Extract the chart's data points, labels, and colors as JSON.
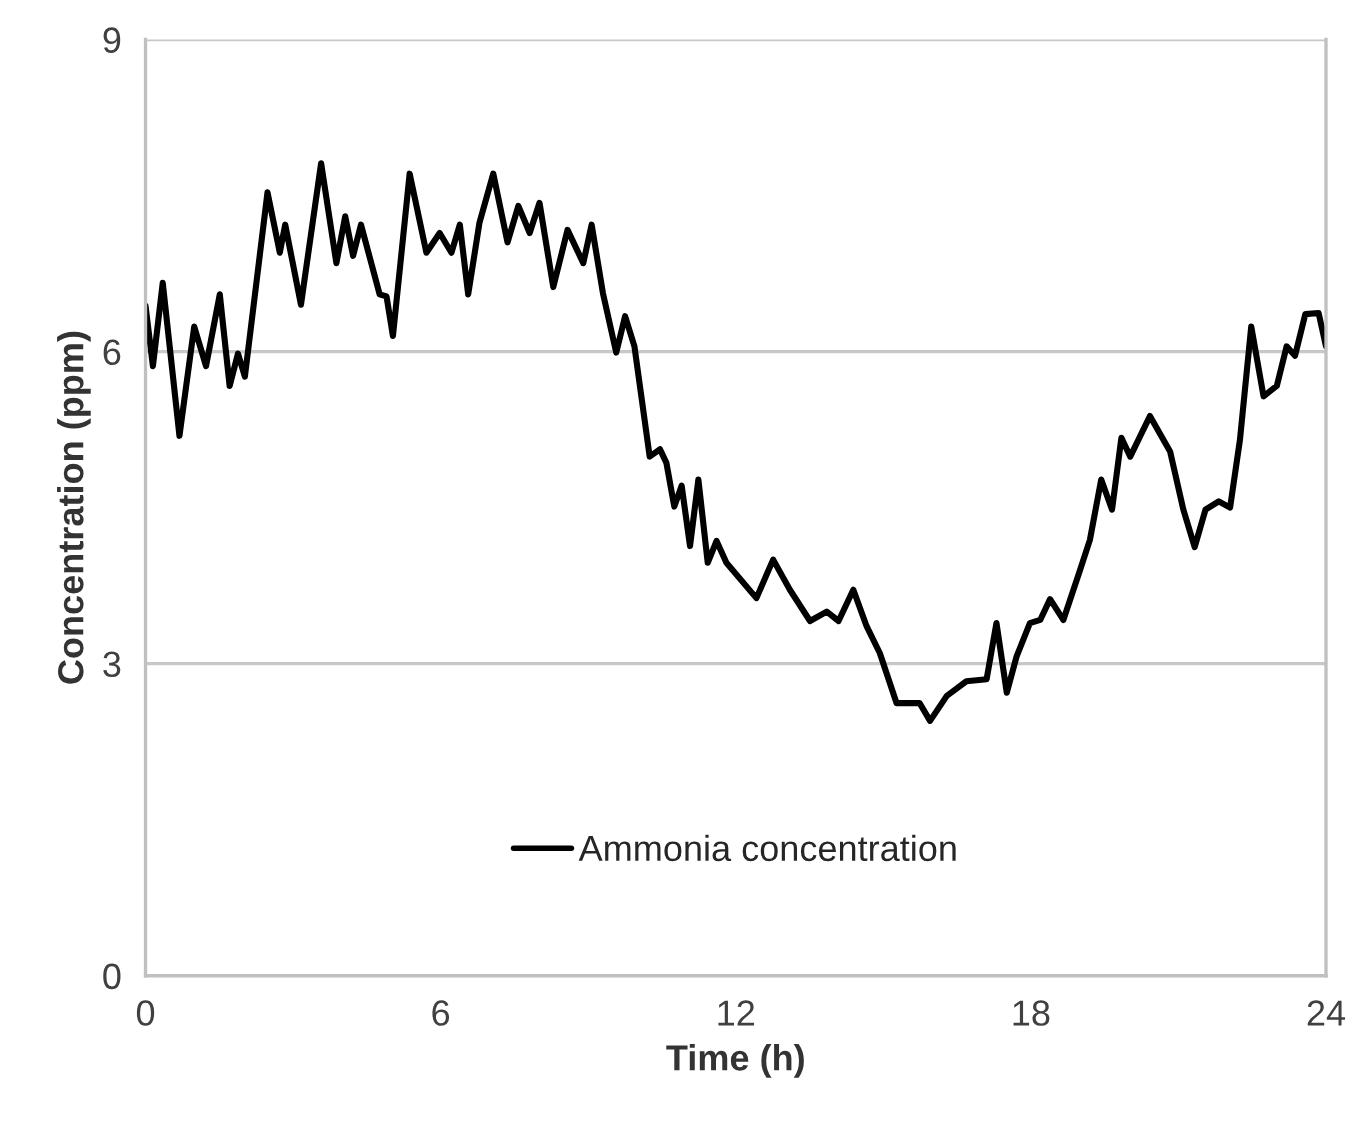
{
  "chart_data": {
    "type": "line",
    "xlabel": "Time (h)",
    "ylabel": "Concentration (ppm)",
    "xlim": [
      0,
      24
    ],
    "xticks": [
      0,
      6,
      12,
      18,
      24
    ],
    "ylim": [
      0,
      9
    ],
    "yticks": [
      0,
      3,
      6,
      9
    ],
    "grid": "y",
    "legend": "bottom",
    "marker": "none",
    "line_style": "solid",
    "series": [
      {
        "name": "Ammonia concentration",
        "color": "#000000",
        "x": [
          0.0,
          0.15,
          0.35,
          0.69,
          0.99,
          1.23,
          1.51,
          1.71,
          1.88,
          2.02,
          2.48,
          2.73,
          2.84,
          3.16,
          3.57,
          3.88,
          4.06,
          4.22,
          4.38,
          4.76,
          4.9,
          5.03,
          5.37,
          5.71,
          5.98,
          6.22,
          6.39,
          6.56,
          6.79,
          7.07,
          7.36,
          7.58,
          7.81,
          8.01,
          8.29,
          8.58,
          8.9,
          9.07,
          9.3,
          9.57,
          9.75,
          9.94,
          10.25,
          10.46,
          10.59,
          10.75,
          10.9,
          11.07,
          11.24,
          11.43,
          11.61,
          11.81,
          12.42,
          12.76,
          13.1,
          13.51,
          13.85,
          14.09,
          14.39,
          14.66,
          14.93,
          15.27,
          15.74,
          15.95,
          16.29,
          16.69,
          17.1,
          17.3,
          17.51,
          17.71,
          17.98,
          18.19,
          18.39,
          18.66,
          19.0,
          19.2,
          19.43,
          19.65,
          19.84,
          20.02,
          20.42,
          20.83,
          21.1,
          21.33,
          21.55,
          21.82,
          22.05,
          22.25,
          22.48,
          22.73,
          23.0,
          23.2,
          23.37,
          23.58,
          23.85,
          24.0
        ],
        "values": [
          6.44,
          5.86,
          6.66,
          5.19,
          6.24,
          5.86,
          6.55,
          5.67,
          5.98,
          5.76,
          7.53,
          6.95,
          7.22,
          6.45,
          7.81,
          6.85,
          7.3,
          6.92,
          7.22,
          6.55,
          6.53,
          6.15,
          7.71,
          6.95,
          7.14,
          6.95,
          7.22,
          6.55,
          7.24,
          7.71,
          7.05,
          7.4,
          7.14,
          7.43,
          6.62,
          7.17,
          6.85,
          7.22,
          6.56,
          5.99,
          6.34,
          6.05,
          4.99,
          5.06,
          4.93,
          4.51,
          4.71,
          4.13,
          4.77,
          3.97,
          4.18,
          3.97,
          3.63,
          4.0,
          3.71,
          3.41,
          3.5,
          3.41,
          3.71,
          3.36,
          3.1,
          2.62,
          2.62,
          2.45,
          2.69,
          2.83,
          2.85,
          3.39,
          2.72,
          3.07,
          3.39,
          3.42,
          3.62,
          3.42,
          3.9,
          4.19,
          4.77,
          4.48,
          5.17,
          4.99,
          5.38,
          5.04,
          4.48,
          4.12,
          4.48,
          4.56,
          4.5,
          5.15,
          6.24,
          5.57,
          5.67,
          6.05,
          5.96,
          6.36,
          6.37,
          6.05
        ]
      }
    ]
  }
}
